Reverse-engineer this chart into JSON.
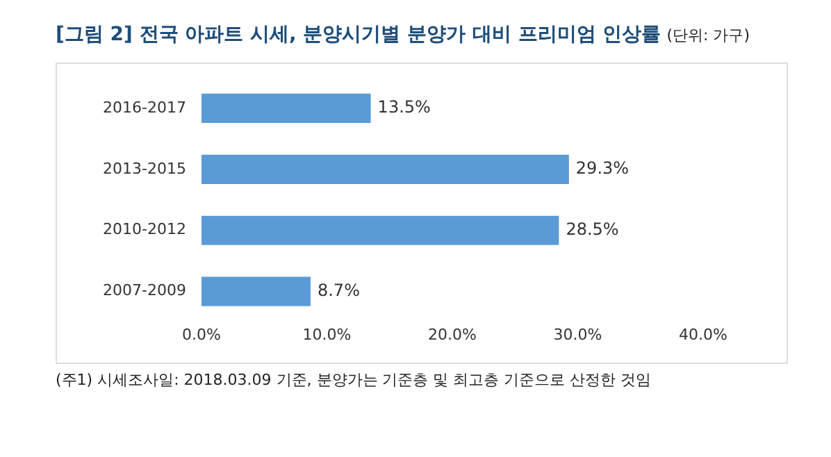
{
  "chart_data": {
    "type": "bar",
    "orientation": "horizontal",
    "title": "[그림 2] 전국 아파트 시세, 분양시기별 분양가 대비 프리미엄 인상률",
    "subtitle": "(단위: 가구)",
    "categories": [
      "2016-2017",
      "2013-2015",
      "2010-2012",
      "2007-2009"
    ],
    "values": [
      13.5,
      29.3,
      28.5,
      8.7
    ],
    "color": "#5b9bd5",
    "value_labels": [
      "13.5%",
      "29.3%",
      "28.5%",
      "8.7%"
    ],
    "xlim": [
      0,
      40
    ],
    "xticks": [
      {
        "value": 0,
        "label": "0.0%"
      },
      {
        "value": 10,
        "label": "10.0%"
      },
      {
        "value": 20,
        "label": "20.0%"
      },
      {
        "value": 30,
        "label": "30.0%"
      },
      {
        "value": 40,
        "label": "40.0%"
      }
    ],
    "grid": false,
    "legend": false,
    "annotations": [
      "(주1) 시세조사일: 2018.03.09 기준, 분양가는 기준층 및 최고층 기준으로 산정한 것임"
    ]
  }
}
